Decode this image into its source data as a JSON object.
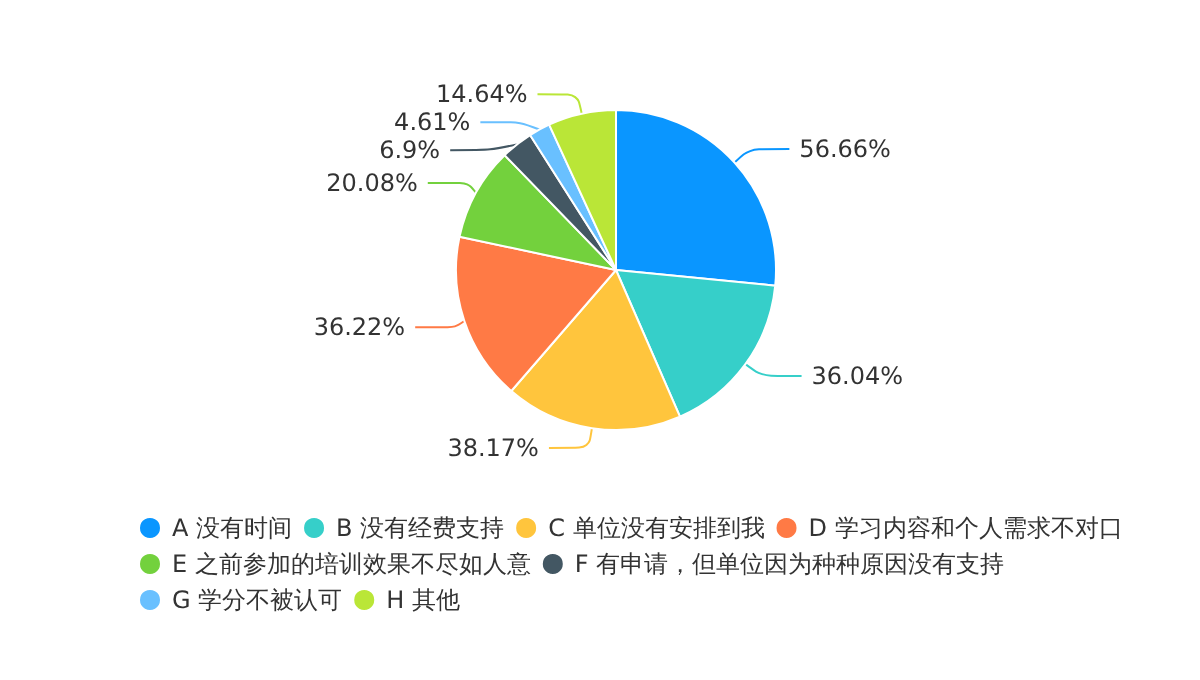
{
  "chart_data": {
    "type": "pie",
    "categories": [
      "A 没有时间",
      "B 没有经费支持",
      "C 单位没有安排到我",
      "D 学习内容和个人需求不对口",
      "E 之前参加的培训效果不尽如人意",
      "F 有申请，但单位因为种种原因没有支持",
      "G 学分不被认可",
      "H 其他"
    ],
    "values": [
      56.66,
      36.04,
      38.17,
      36.22,
      20.08,
      6.9,
      4.61,
      14.64
    ],
    "value_labels": [
      "56.66%",
      "36.04%",
      "38.17%",
      "36.22%",
      "20.08%",
      "6.9%",
      "4.61%",
      "14.64%"
    ],
    "colors": [
      "#0a96ff",
      "#36cfc9",
      "#ffc53d",
      "#ff7a45",
      "#73d13d",
      "#435763",
      "#69c0ff",
      "#bae637"
    ],
    "legend": "bottom"
  }
}
